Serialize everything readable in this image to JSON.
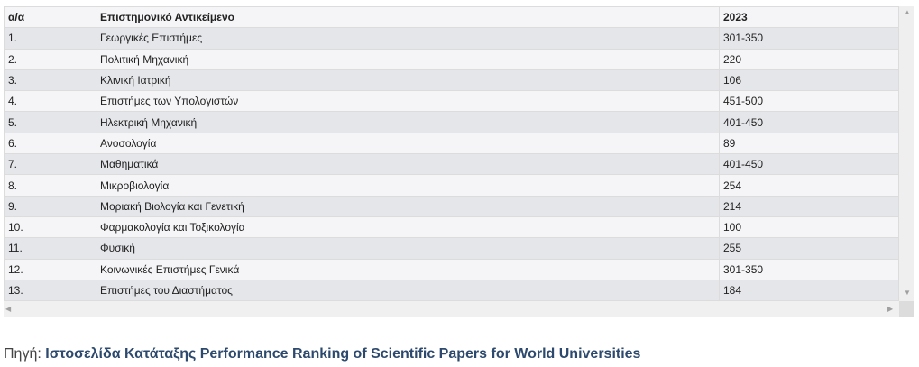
{
  "table": {
    "headers": [
      "α/α",
      "Επιστημονικό Αντικείμενο",
      "2023"
    ],
    "rows": [
      [
        "1.",
        "Γεωργικές Επιστήμες",
        "301-350"
      ],
      [
        "2.",
        "Πολιτική Μηχανική",
        "220"
      ],
      [
        "3.",
        "Κλινική Ιατρική",
        "106"
      ],
      [
        "4.",
        "Επιστήμες των Υπολογιστών",
        "451-500"
      ],
      [
        "5.",
        "Ηλεκτρική Μηχανική",
        "401-450"
      ],
      [
        "6.",
        "Ανοσολογία",
        "89"
      ],
      [
        "7.",
        "Μαθηματικά",
        "401-450"
      ],
      [
        "8.",
        "Μικροβιολογία",
        "254"
      ],
      [
        "9.",
        "Μοριακή Βιολογία και Γενετική",
        "214"
      ],
      [
        "10.",
        "Φαρμακολογία και Τοξικολογία",
        "100"
      ],
      [
        "11.",
        "Φυσική",
        "255"
      ],
      [
        "12.",
        "Κοινωνικές Επιστήμες  Γενικά",
        "301-350"
      ],
      [
        "13.",
        "Επιστήμες του Διαστήματος",
        "184"
      ]
    ]
  },
  "source": {
    "label": "Πηγή:",
    "link": "Ιστοσελίδα Κατάταξης Performance Ranking of Scientific Papers for World Universities"
  },
  "colors": {
    "link": "#2d4a6e",
    "row_alt": "#e5e6ea"
  }
}
